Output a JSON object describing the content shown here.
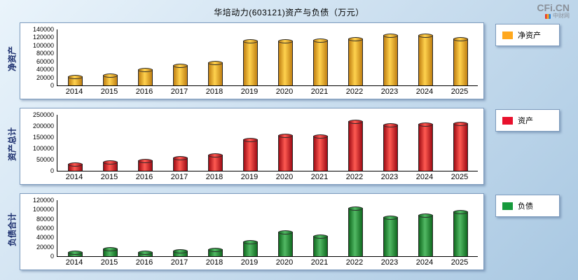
{
  "title": "华培动力(603121)资产与负债（万元）",
  "watermark": {
    "brand": "CFi.CN",
    "site": "中财网"
  },
  "chart_data": [
    {
      "type": "bar",
      "name": "net_assets",
      "axis_label": "净资产",
      "legend": "净资产",
      "categories": [
        "2014",
        "2015",
        "2016",
        "2017",
        "2018",
        "2019",
        "2020",
        "2021",
        "2022",
        "2023",
        "2024",
        "2025"
      ],
      "values": [
        22000,
        27000,
        40000,
        50000,
        57000,
        112000,
        112000,
        114000,
        118000,
        126000,
        126000,
        117000
      ],
      "ylim": [
        0,
        140000
      ],
      "yticks": [
        0,
        20000,
        40000,
        60000,
        80000,
        100000,
        120000,
        140000
      ],
      "legend_position": "right",
      "grid": false,
      "color_light": "#ffd24e",
      "color_dark": "#c07f12",
      "color_swatch": "#ffa81e"
    },
    {
      "type": "bar",
      "name": "total_assets",
      "axis_label": "资产总计",
      "legend": "资产",
      "categories": [
        "2014",
        "2015",
        "2016",
        "2017",
        "2018",
        "2019",
        "2020",
        "2021",
        "2022",
        "2023",
        "2024",
        "2025"
      ],
      "values": [
        30000,
        40000,
        47000,
        60000,
        72000,
        140000,
        160000,
        155000,
        222000,
        207000,
        210000,
        212000
      ],
      "ylim": [
        0,
        250000
      ],
      "yticks": [
        0,
        50000,
        100000,
        150000,
        200000,
        250000
      ],
      "legend_position": "right",
      "grid": false,
      "color_light": "#ff5a52",
      "color_dark": "#9e0b14",
      "color_swatch": "#e8112d"
    },
    {
      "type": "bar",
      "name": "total_liabilities",
      "axis_label": "负债合计",
      "legend": "负债",
      "categories": [
        "2014",
        "2015",
        "2016",
        "2017",
        "2018",
        "2019",
        "2020",
        "2021",
        "2022",
        "2023",
        "2024",
        "2025"
      ],
      "values": [
        9000,
        16000,
        9000,
        12000,
        15000,
        31000,
        52000,
        43000,
        103000,
        84000,
        89000,
        96000
      ],
      "ylim": [
        0,
        120000
      ],
      "yticks": [
        0,
        20000,
        40000,
        60000,
        80000,
        100000,
        120000
      ],
      "legend_position": "right",
      "grid": false,
      "color_light": "#52b964",
      "color_dark": "#10691f",
      "color_swatch": "#169a3c"
    }
  ]
}
